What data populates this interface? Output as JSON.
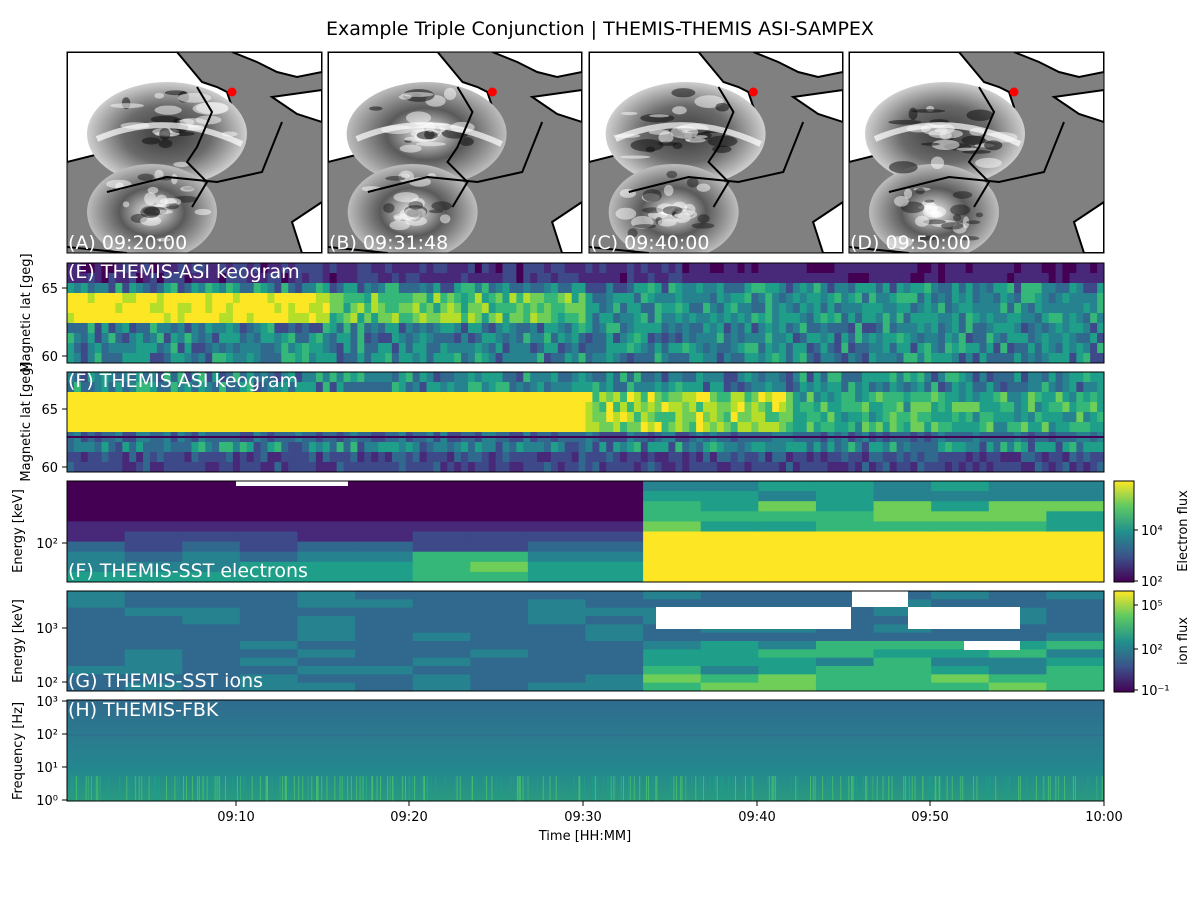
{
  "figure": {
    "title": "Example Triple Conjunction | THEMIS-THEMIS ASI-SAMPEX"
  },
  "maps": [
    {
      "label": "(A) 09:20:00"
    },
    {
      "label": "(B) 09:31:48"
    },
    {
      "label": "(C) 09:40:00"
    },
    {
      "label": "(D) 09:50:00"
    }
  ],
  "colors": {
    "land": "#808080",
    "water": "#ffffff",
    "coast": "#000000",
    "satellite_marker": "#ff0000",
    "viridis": [
      "#440154",
      "#482878",
      "#3e4989",
      "#31688e",
      "#26828e",
      "#1f9e89",
      "#35b779",
      "#6ece58",
      "#b5de2b",
      "#fde725"
    ]
  },
  "chart_data": [
    {
      "type": "heatmap",
      "label": "(E) THEMIS-ASI keogram",
      "ylabel": "Magnetic lat [geg]",
      "yticks": [
        "60",
        "65"
      ],
      "ylim": [
        59.3,
        67.2
      ]
    },
    {
      "type": "heatmap",
      "label": "(F) THEMIS ASI keogram",
      "ylabel": "Magnetic lat [geg]",
      "yticks": [
        "60",
        "65"
      ],
      "ylim": [
        59.3,
        67.2
      ]
    },
    {
      "type": "heatmap",
      "label": "(F) THEMIS-SST electrons",
      "ylabel": "Energy [keV]",
      "yticks": [
        "10²"
      ],
      "colorbar": {
        "label": "Electron flux",
        "ticks": [
          "10²",
          "10⁴"
        ]
      }
    },
    {
      "type": "heatmap",
      "label": "(G) THEMIS-SST ions",
      "ylabel": "Energy [keV]",
      "yticks": [
        "10²",
        "10³"
      ],
      "colorbar": {
        "label": "ion flux",
        "ticks": [
          "10⁻¹",
          "10²",
          "10⁵"
        ]
      }
    },
    {
      "type": "heatmap",
      "label": "(H) THEMIS-FBK",
      "ylabel": "Frequency [Hz]",
      "yticks": [
        "10⁰",
        "10¹",
        "10²",
        "10³"
      ],
      "xlabel": "Time [HH:MM]",
      "xticks": [
        "09:10",
        "09:20",
        "09:30",
        "09:40",
        "09:50",
        "10:00"
      ]
    }
  ]
}
